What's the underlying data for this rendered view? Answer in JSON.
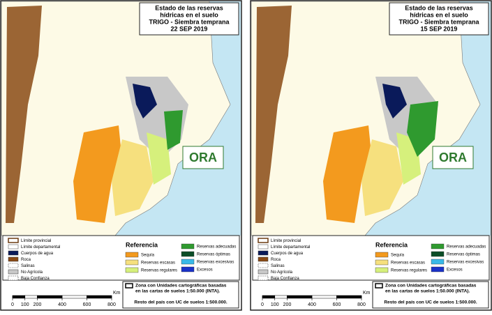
{
  "panels": [
    {
      "title": [
        "Estado de las reservas",
        "hídricas en el suelo",
        "TRIGO - Siembra temprana"
      ],
      "date": "22 SEP 2019"
    },
    {
      "title": [
        "Estado de las reservas",
        "hídricas en el suelo",
        "TRIGO - Siembra temprana"
      ],
      "date": "15 SEP 2019"
    }
  ],
  "legend": {
    "boundaries": [
      "Límite provincial",
      "Límite departamental",
      "Cuerpos de agua",
      "Roca",
      "Salinas",
      "No Agrícola",
      "Baja Confianza"
    ],
    "reference_title": "Referencia",
    "classes": [
      {
        "label": "Sequía",
        "color": "#f39a1e"
      },
      {
        "label": "Reservas escasas",
        "color": "#f6e07e"
      },
      {
        "label": "Reservas regulares",
        "color": "#d6f07c"
      },
      {
        "label": "Reservas adecuadas",
        "color": "#2f9a2f"
      },
      {
        "label": "Reservas óptimas",
        "color": "#0b4d26"
      },
      {
        "label": "Reservas excesivas",
        "color": "#39b9e8"
      },
      {
        "label": "Excesos",
        "color": "#1a32c8"
      }
    ]
  },
  "note": {
    "zone": [
      "Zona con Unidades cartográficas basadas",
      "en las cartas de suelos 1:50.000 (INTA)."
    ],
    "rest": "Resto del país con UC de suelos 1:500.000."
  },
  "scale": {
    "ticks": [
      0,
      100,
      200,
      400,
      600,
      800
    ],
    "unit": "Km"
  },
  "logo": "ORA"
}
